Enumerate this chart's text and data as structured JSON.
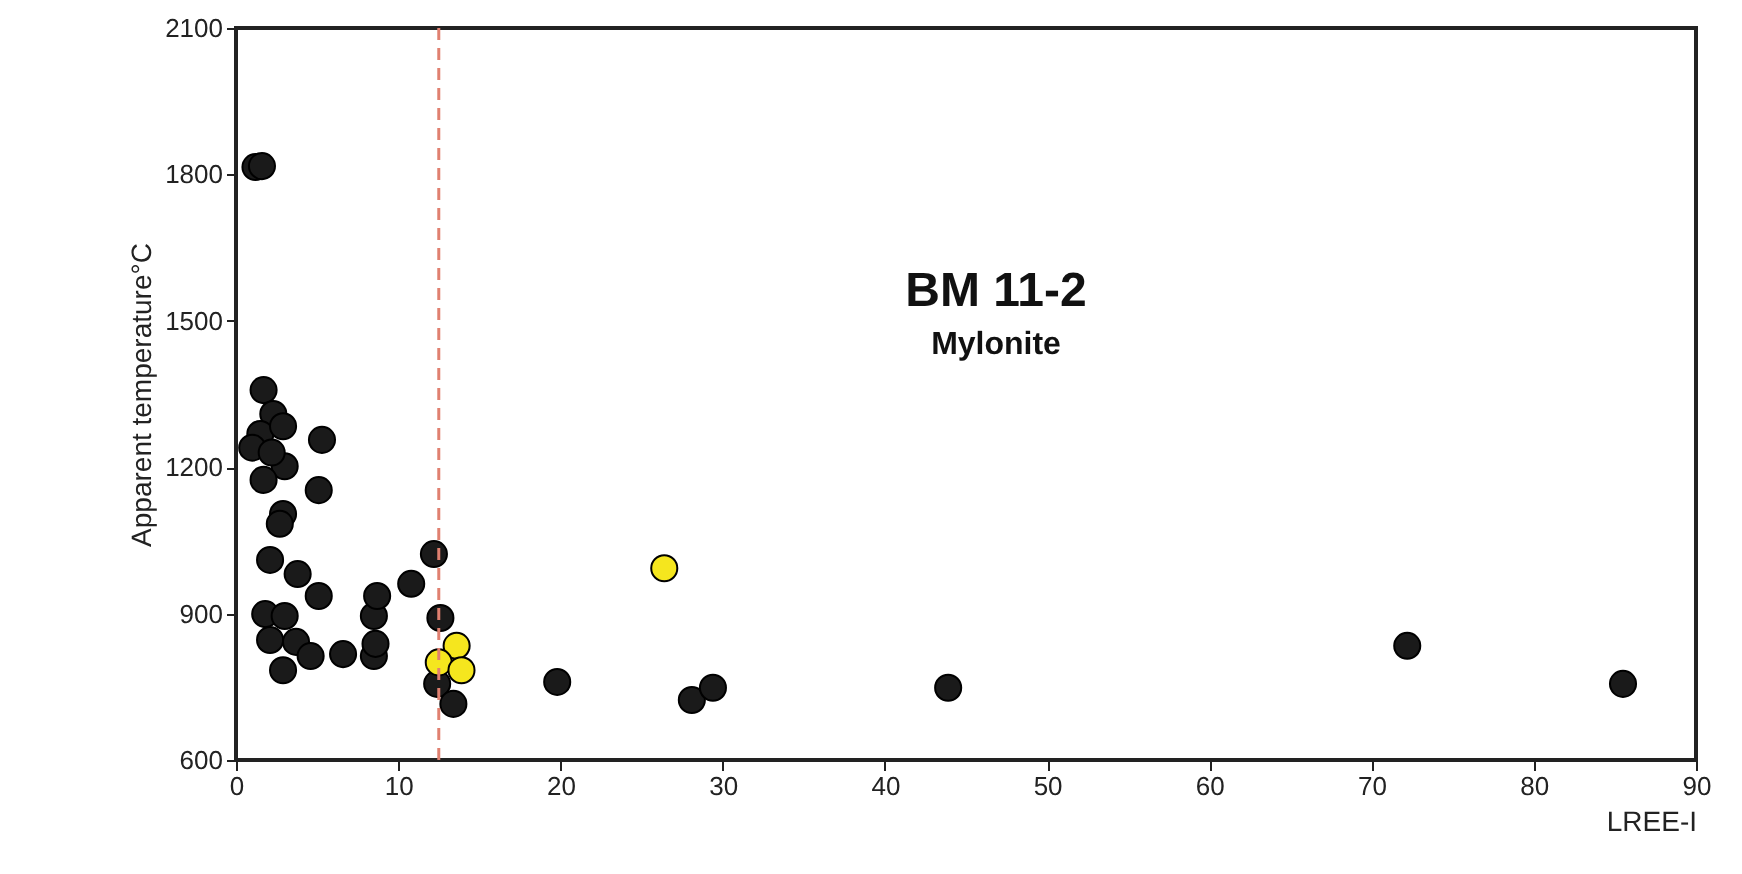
{
  "chart_data": {
    "type": "scatter",
    "xlabel": "LREE-I",
    "ylabel": "Apparent temperature°C",
    "annotations": [
      "BM 11-2",
      "Mylonite"
    ],
    "xlim": [
      0,
      90
    ],
    "xticks": [
      0,
      10,
      20,
      30,
      40,
      50,
      60,
      70,
      80,
      90
    ],
    "ylim": [
      600,
      2100
    ],
    "yticks": [
      600,
      900,
      1200,
      1500,
      1800,
      2100
    ],
    "grid": false,
    "marker": "circle",
    "ref_lines": [
      {
        "axis": "x",
        "value": 12.5,
        "color": "#e08070",
        "line_style": "dashed"
      }
    ],
    "series": [
      {
        "color": "#1a1a1a",
        "x": [
          1.2,
          1.6,
          1.7,
          2.3,
          1.5,
          2.9,
          3.0,
          1.7,
          5.3,
          5.1,
          2.9,
          2.7,
          2.1,
          3.8,
          5.1,
          1.8,
          3.0,
          2.1,
          3.7,
          4.6,
          6.6,
          2.9,
          8.5,
          8.6,
          8.5,
          8.7,
          10.8,
          12.2,
          12.6,
          12.4,
          13.4,
          19.8,
          28.1,
          29.4,
          43.9,
          72.2,
          85.5,
          1.0,
          2.2
        ],
        "values": [
          1815,
          1817,
          1358,
          1309,
          1268,
          1284,
          1202,
          1174,
          1256,
          1153,
          1104,
          1084,
          1010,
          981,
          936,
          899,
          895,
          846,
          842,
          813,
          817,
          784,
          813,
          838,
          895,
          936,
          961,
          1022,
          891,
          756,
          715,
          760,
          723,
          748,
          748,
          834,
          756,
          1240,
          1230
        ]
      },
      {
        "color": "#f5e61e",
        "x": [
          26.4,
          13.6,
          12.5,
          13.9
        ],
        "values": [
          993,
          834,
          800,
          784
        ]
      }
    ]
  }
}
